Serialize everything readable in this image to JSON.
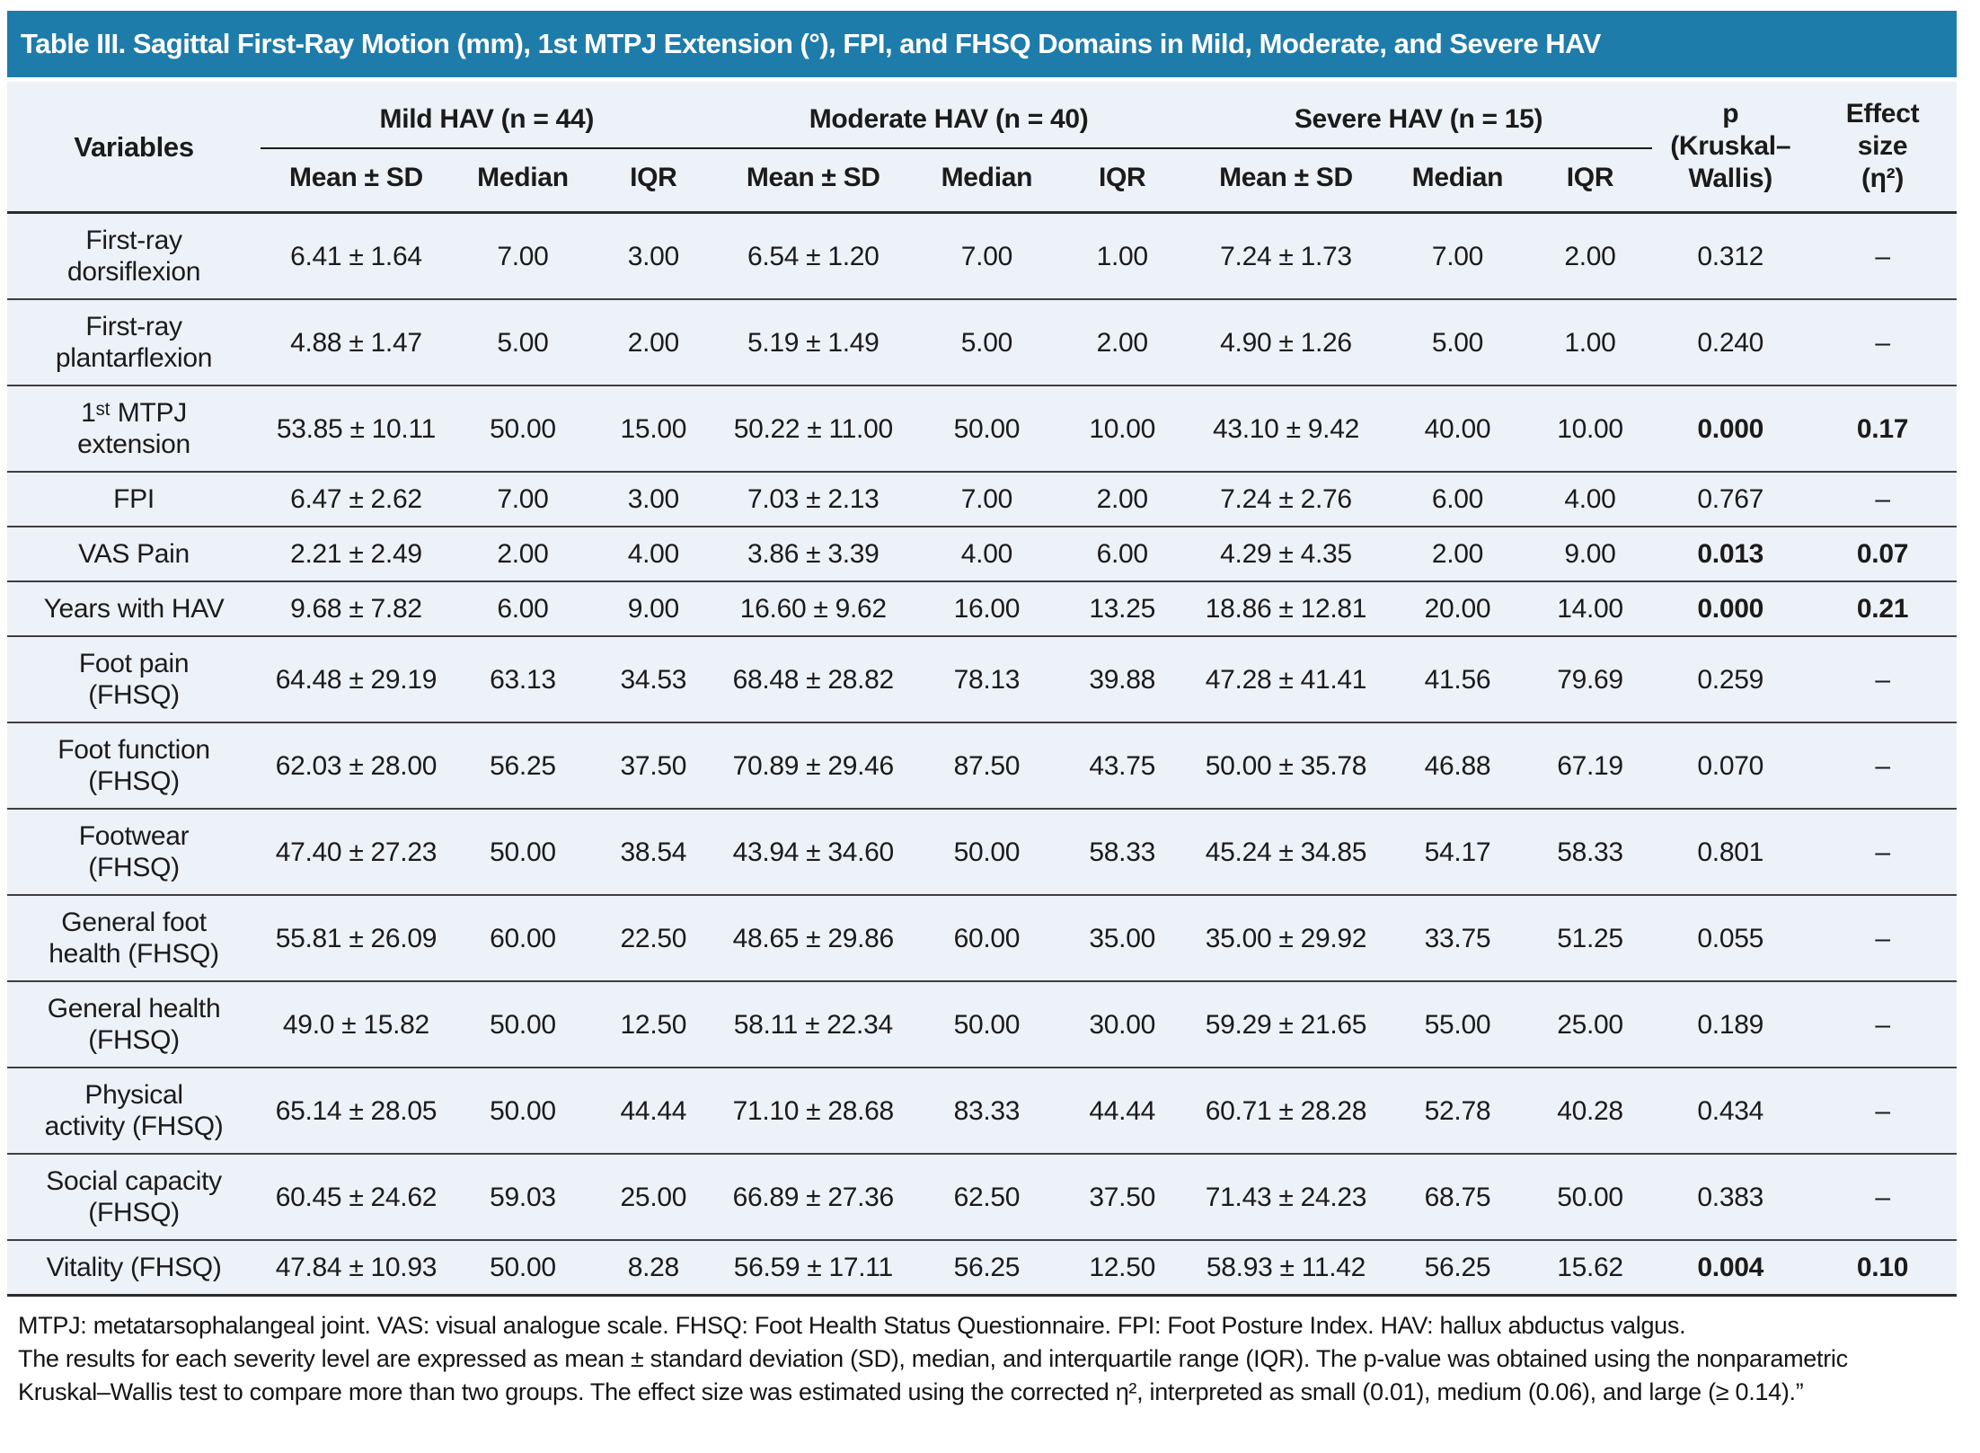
{
  "title": "Table III. Sagittal First-Ray Motion (mm), 1st MTPJ Extension (°), FPI, and FHSQ Domains in Mild, Moderate, and Severe HAV",
  "header": {
    "variables": "Variables",
    "groups": [
      "Mild HAV (n = 44)",
      "Moderate HAV (n = 40)",
      "Severe HAV (n = 15)"
    ],
    "sub": [
      "Mean ± SD",
      "Median",
      "IQR"
    ],
    "p_label": "p\n(Kruskal–\nWallis)",
    "effect_label": "Effect\nsize\n(η²)"
  },
  "rows": [
    {
      "label": "First-ray\ndorsiflexion",
      "values": [
        "6.41 ± 1.64",
        "7.00",
        "3.00",
        "6.54 ± 1.20",
        "7.00",
        "1.00",
        "7.24 ± 1.73",
        "7.00",
        "2.00"
      ],
      "p": "0.312",
      "effect": "–",
      "significant": false
    },
    {
      "label": "First-ray\nplantarflexion",
      "values": [
        "4.88 ± 1.47",
        "5.00",
        "2.00",
        "5.19 ± 1.49",
        "5.00",
        "2.00",
        "4.90 ± 1.26",
        "5.00",
        "1.00"
      ],
      "p": "0.240",
      "effect": "–",
      "significant": false
    },
    {
      "label": "1ˢᵗ MTPJ\nextension",
      "values": [
        "53.85 ± 10.11",
        "50.00",
        "15.00",
        "50.22 ± 11.00",
        "50.00",
        "10.00",
        "43.10 ± 9.42",
        "40.00",
        "10.00"
      ],
      "p": "0.000",
      "effect": "0.17",
      "significant": true
    },
    {
      "label": "FPI",
      "values": [
        "6.47 ± 2.62",
        "7.00",
        "3.00",
        "7.03 ± 2.13",
        "7.00",
        "2.00",
        "7.24 ± 2.76",
        "6.00",
        "4.00"
      ],
      "p": "0.767",
      "effect": "–",
      "significant": false
    },
    {
      "label": "VAS Pain",
      "values": [
        "2.21 ± 2.49",
        "2.00",
        "4.00",
        "3.86 ± 3.39",
        "4.00",
        "6.00",
        "4.29 ± 4.35",
        "2.00",
        "9.00"
      ],
      "p": "0.013",
      "effect": "0.07",
      "significant": true
    },
    {
      "label": "Years with HAV",
      "values": [
        "9.68 ± 7.82",
        "6.00",
        "9.00",
        "16.60 ± 9.62",
        "16.00",
        "13.25",
        "18.86 ± 12.81",
        "20.00",
        "14.00"
      ],
      "p": "0.000",
      "effect": "0.21",
      "significant": true
    },
    {
      "label": "Foot pain\n(FHSQ)",
      "values": [
        "64.48 ± 29.19",
        "63.13",
        "34.53",
        "68.48 ± 28.82",
        "78.13",
        "39.88",
        "47.28 ± 41.41",
        "41.56",
        "79.69"
      ],
      "p": "0.259",
      "effect": "–",
      "significant": false
    },
    {
      "label": "Foot function\n(FHSQ)",
      "values": [
        "62.03 ± 28.00",
        "56.25",
        "37.50",
        "70.89 ± 29.46",
        "87.50",
        "43.75",
        "50.00 ± 35.78",
        "46.88",
        "67.19"
      ],
      "p": "0.070",
      "effect": "–",
      "significant": false
    },
    {
      "label": "Footwear\n(FHSQ)",
      "values": [
        "47.40 ± 27.23",
        "50.00",
        "38.54",
        "43.94 ± 34.60",
        "50.00",
        "58.33",
        "45.24 ± 34.85",
        "54.17",
        "58.33"
      ],
      "p": "0.801",
      "effect": "–",
      "significant": false
    },
    {
      "label": "General foot\nhealth (FHSQ)",
      "values": [
        "55.81 ± 26.09",
        "60.00",
        "22.50",
        "48.65 ± 29.86",
        "60.00",
        "35.00",
        "35.00 ± 29.92",
        "33.75",
        "51.25"
      ],
      "p": "0.055",
      "effect": "–",
      "significant": false
    },
    {
      "label": "General health\n(FHSQ)",
      "values": [
        "49.0 ± 15.82",
        "50.00",
        "12.50",
        "58.11 ± 22.34",
        "50.00",
        "30.00",
        "59.29 ± 21.65",
        "55.00",
        "25.00"
      ],
      "p": "0.189",
      "effect": "–",
      "significant": false
    },
    {
      "label": "Physical\nactivity (FHSQ)",
      "values": [
        "65.14 ± 28.05",
        "50.00",
        "44.44",
        "71.10 ± 28.68",
        "83.33",
        "44.44",
        "60.71 ± 28.28",
        "52.78",
        "40.28"
      ],
      "p": "0.434",
      "effect": "–",
      "significant": false
    },
    {
      "label": "Social capacity\n(FHSQ)",
      "values": [
        "60.45 ± 24.62",
        "59.03",
        "25.00",
        "66.89 ± 27.36",
        "62.50",
        "37.50",
        "71.43 ± 24.23",
        "68.75",
        "50.00"
      ],
      "p": "0.383",
      "effect": "–",
      "significant": false
    },
    {
      "label": "Vitality (FHSQ)",
      "values": [
        "47.84 ± 10.93",
        "50.00",
        "8.28",
        "56.59 ± 17.11",
        "56.25",
        "12.50",
        "58.93 ± 11.42",
        "56.25",
        "15.62"
      ],
      "p": "0.004",
      "effect": "0.10",
      "significant": true
    }
  ],
  "footnotes": [
    "MTPJ: metatarsophalangeal joint. VAS: visual analogue scale. FHSQ: Foot Health Status Questionnaire. FPI: Foot Posture Index. HAV: hallux abductus valgus.",
    "The results for each severity level are expressed as mean ± standard deviation (SD), median, and interquartile range (IQR). The p-value was obtained using the nonparametric\nKruskal–Wallis test to compare more than two groups. The effect size was estimated using the corrected η², interpreted as small (0.01), medium (0.06), and large (≥ 0.14).”"
  ],
  "colors": {
    "title_bar": "#1e7cab",
    "body_background": "#edf1f8",
    "rule": "#3f3f3f"
  }
}
